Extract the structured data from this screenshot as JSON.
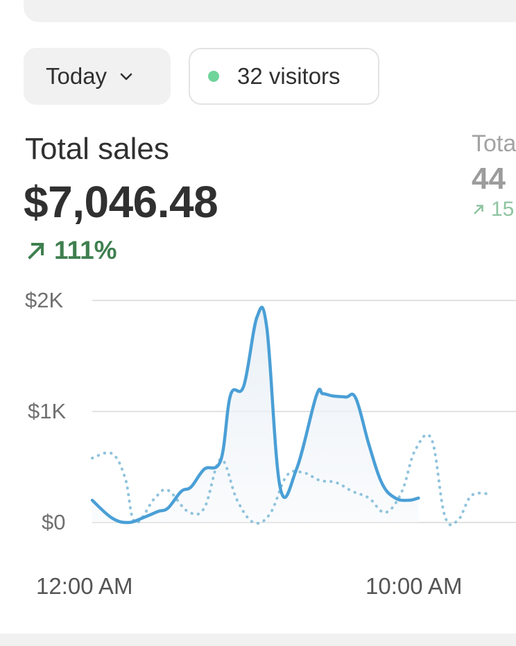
{
  "filters": {
    "date_label": "Today",
    "visitors_label": "32 visitors"
  },
  "metric": {
    "label": "Total sales",
    "value": "$7,046.48",
    "change": "111%"
  },
  "side_metric": {
    "label": "Tota",
    "value": "44",
    "change": "15"
  },
  "colors": {
    "accent": "#4a9fd6",
    "comparison": "#8fc3dc",
    "positive": "#3f7f4f",
    "live_dot": "#6fd49a"
  },
  "icons": {
    "date_chevron": "chevron-down-icon",
    "change_arrow": "arrow-up-right-icon"
  },
  "chart_data": {
    "type": "line",
    "y_ticks": [
      "$2K",
      "$1K",
      "$0"
    ],
    "x_ticks": [
      "12:00 AM",
      "10:00 AM"
    ],
    "ylim": [
      0,
      2000
    ],
    "grid": true,
    "series": [
      {
        "style": "solid",
        "color": "#4a9fd6",
        "x": [
          0,
          0.6,
          1.1,
          1.6,
          2.0,
          2.3,
          2.7,
          3.0,
          3.4,
          3.9,
          4.2,
          4.6,
          5.0,
          5.3,
          5.7,
          6.2,
          6.8,
          7.0,
          7.3,
          7.7,
          8.0,
          8.4,
          8.8,
          9.2,
          9.6,
          9.9
        ],
        "y": [
          200,
          40,
          0,
          50,
          100,
          130,
          280,
          320,
          480,
          560,
          1150,
          1230,
          1850,
          1750,
          320,
          480,
          1140,
          1160,
          1140,
          1130,
          1120,
          700,
          350,
          220,
          200,
          220
        ]
      },
      {
        "style": "dotted",
        "color": "#8fc3dc",
        "x": [
          0,
          0.6,
          1.0,
          1.3,
          1.9,
          2.3,
          2.9,
          3.4,
          3.9,
          4.4,
          4.9,
          5.4,
          5.9,
          6.4,
          6.9,
          7.4,
          7.9,
          8.4,
          8.9,
          9.4,
          9.8,
          10.3,
          10.7,
          11.1,
          11.5,
          12.0
        ],
        "y": [
          580,
          620,
          400,
          0,
          220,
          290,
          100,
          130,
          570,
          200,
          0,
          80,
          420,
          450,
          380,
          360,
          280,
          220,
          90,
          280,
          650,
          750,
          60,
          20,
          240,
          260
        ]
      }
    ]
  }
}
